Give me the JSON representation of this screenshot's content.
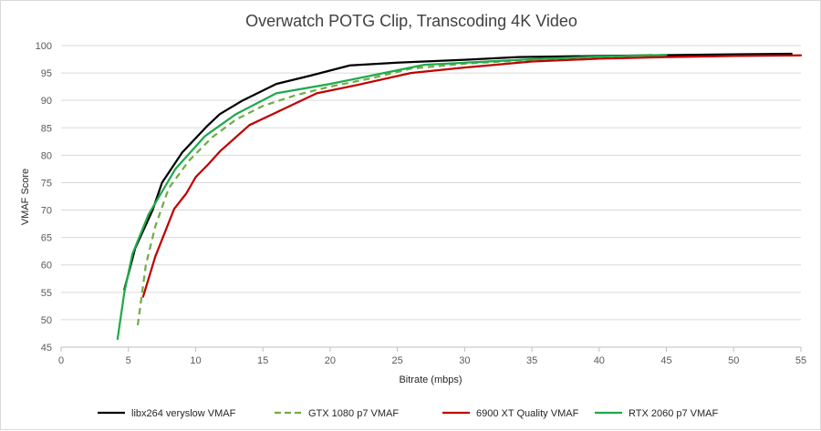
{
  "chart_data": {
    "type": "line",
    "title": "Overwatch POTG Clip, Transcoding 4K Video",
    "xlabel": "Bitrate (mbps)",
    "ylabel": "VMAF Score",
    "xlim": [
      0,
      55
    ],
    "ylim": [
      45,
      100
    ],
    "xticks": [
      0,
      5,
      10,
      15,
      20,
      25,
      30,
      35,
      40,
      45,
      50,
      55
    ],
    "yticks": [
      45,
      50,
      55,
      60,
      65,
      70,
      75,
      80,
      85,
      90,
      95,
      100
    ],
    "grid": "horizontal",
    "legend_position": "bottom",
    "series": [
      {
        "name": "libx264 veryslow VMAF",
        "color": "#000000",
        "dash": "solid",
        "points": [
          [
            4.7,
            55.5
          ],
          [
            5.5,
            63
          ],
          [
            6.8,
            70
          ],
          [
            7.5,
            75
          ],
          [
            9,
            80.5
          ],
          [
            10.8,
            85.2
          ],
          [
            11.8,
            87.5
          ],
          [
            13.5,
            90
          ],
          [
            16,
            93
          ],
          [
            18.5,
            94.5
          ],
          [
            21.5,
            96.4
          ],
          [
            25,
            96.9
          ],
          [
            30,
            97.4
          ],
          [
            34,
            97.9
          ],
          [
            40,
            98.1
          ],
          [
            50,
            98.4
          ],
          [
            54.3,
            98.5
          ]
        ]
      },
      {
        "name": "GTX 1080 p7 VMAF",
        "color": "#70ad47",
        "dash": "dashed",
        "points": [
          [
            5.7,
            49
          ],
          [
            6.3,
            60
          ],
          [
            7,
            67
          ],
          [
            8,
            74
          ],
          [
            9.5,
            79
          ],
          [
            11.2,
            83.2
          ],
          [
            13,
            86.5
          ],
          [
            15,
            89
          ],
          [
            17.5,
            91
          ],
          [
            20,
            92.5
          ],
          [
            23,
            94
          ],
          [
            26,
            95.8
          ],
          [
            30,
            96.7
          ],
          [
            35,
            97.4
          ],
          [
            40,
            97.9
          ],
          [
            44,
            98.3
          ]
        ]
      },
      {
        "name": "6900 XT Quality VMAF",
        "color": "#c00000",
        "dash": "solid",
        "points": [
          [
            6.1,
            54.2
          ],
          [
            7,
            61.5
          ],
          [
            8.4,
            70.2
          ],
          [
            9.3,
            73
          ],
          [
            10,
            76
          ],
          [
            11,
            78.5
          ],
          [
            11.8,
            80.7
          ],
          [
            14,
            85.5
          ],
          [
            16,
            87.8
          ],
          [
            19,
            91.3
          ],
          [
            22,
            92.8
          ],
          [
            26,
            95
          ],
          [
            30,
            96
          ],
          [
            35,
            97.1
          ],
          [
            40,
            97.6
          ],
          [
            45,
            97.9
          ],
          [
            50,
            98.1
          ],
          [
            55,
            98.2
          ]
        ]
      },
      {
        "name": "RTX 2060 p7 VMAF",
        "color": "#1eaa4c",
        "dash": "solid",
        "points": [
          [
            4.2,
            46.5
          ],
          [
            4.7,
            55
          ],
          [
            5.3,
            62
          ],
          [
            6.5,
            69.2
          ],
          [
            8.5,
            77.5
          ],
          [
            10.7,
            83.5
          ],
          [
            13,
            87.5
          ],
          [
            16,
            91.3
          ],
          [
            20,
            93
          ],
          [
            25,
            95.5
          ],
          [
            27,
            96.5
          ],
          [
            35,
            97.5
          ],
          [
            40,
            98
          ],
          [
            45,
            98.3
          ]
        ]
      }
    ]
  }
}
